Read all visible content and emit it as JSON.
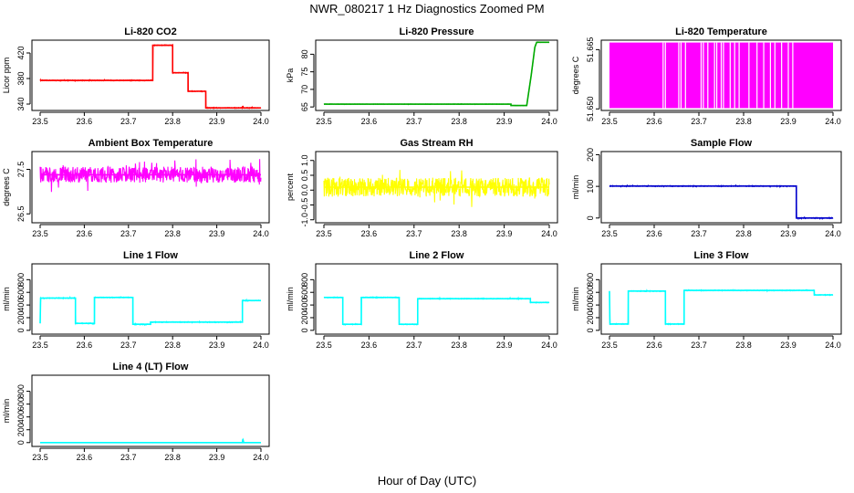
{
  "figure_title": "NWR_080217  1 Hz Diagnostics Zoomed PM",
  "x_axis_label": "Hour of Day (UTC)",
  "chart_data": [
    {
      "id": "co2",
      "type": "line",
      "title": "Li-820 CO2",
      "ylabel": "Licor ppm",
      "color": "#ff0000",
      "xlim": [
        23.5,
        24.0
      ],
      "ylim": [
        330,
        440
      ],
      "x_ticks": [
        "23.5",
        "23.6",
        "23.7",
        "23.8",
        "23.9",
        "24.0"
      ],
      "y_ticks": [
        "340",
        "380",
        "420"
      ],
      "y_tick_values": [
        340,
        380,
        420
      ],
      "noise": 0.6,
      "series": [
        {
          "points": [
            [
              23.5,
              377
            ],
            [
              23.755,
              377
            ],
            [
              23.755,
              432
            ],
            [
              23.8,
              432
            ],
            [
              23.8,
              389
            ],
            [
              23.835,
              389
            ],
            [
              23.835,
              360
            ],
            [
              23.875,
              360
            ],
            [
              23.875,
              334
            ],
            [
              23.958,
              334
            ],
            [
              23.959,
              337
            ],
            [
              23.96,
              334
            ],
            [
              24.0,
              334
            ]
          ]
        }
      ]
    },
    {
      "id": "pressure",
      "type": "line",
      "title": "Li-820 Pressure",
      "ylabel": "kPa",
      "color": "#00aa00",
      "xlim": [
        23.5,
        24.0
      ],
      "ylim": [
        64,
        84
      ],
      "x_ticks": [
        "23.5",
        "23.6",
        "23.7",
        "23.8",
        "23.9",
        "24.0"
      ],
      "y_ticks": [
        "65",
        "70",
        "75",
        "80"
      ],
      "y_tick_values": [
        65,
        70,
        75,
        80
      ],
      "noise": 0.05,
      "series": [
        {
          "points": [
            [
              23.5,
              65.8
            ],
            [
              23.915,
              65.8
            ],
            [
              23.915,
              65.4
            ],
            [
              23.95,
              65.4
            ],
            [
              23.96,
              74
            ],
            [
              23.968,
              82
            ],
            [
              23.972,
              83.4
            ],
            [
              24.0,
              83.4
            ]
          ]
        }
      ]
    },
    {
      "id": "temp",
      "type": "band",
      "title": "Li-820 Temperature",
      "ylabel": "degrees C",
      "color": "#ff00ff",
      "xlim": [
        23.5,
        24.0
      ],
      "ylim": [
        51.6496,
        51.6674
      ],
      "x_ticks": [
        "23.5",
        "23.6",
        "23.7",
        "23.8",
        "23.9",
        "24.0"
      ],
      "y_ticks": [
        "51.650",
        "51.665"
      ],
      "y_tick_values": [
        51.65,
        51.665
      ],
      "band": [
        51.6502,
        51.6668
      ],
      "gaps": [
        23.62,
        23.625,
        23.655,
        23.66,
        23.67,
        23.705,
        23.71,
        23.72,
        23.735,
        23.74,
        23.75,
        23.755,
        23.77,
        23.78,
        23.79,
        23.812,
        23.83,
        23.845,
        23.86,
        23.87,
        23.885,
        23.9,
        23.91
      ]
    },
    {
      "id": "ambient",
      "type": "line",
      "title": "Ambient Box Temperature",
      "ylabel": "degrees C",
      "color": "#ff00ff",
      "xlim": [
        23.5,
        24.0
      ],
      "ylim": [
        26.3,
        27.9
      ],
      "x_ticks": [
        "23.5",
        "23.6",
        "23.7",
        "23.8",
        "23.9",
        "24.0"
      ],
      "y_ticks": [
        "26.5",
        "27.5"
      ],
      "y_tick_values": [
        26.5,
        27.5
      ],
      "noise": 0.18,
      "series": [
        {
          "points": [
            [
              23.5,
              27.38
            ],
            [
              24.0,
              27.38
            ]
          ]
        }
      ]
    },
    {
      "id": "rh",
      "type": "line",
      "title": "Gas Stream RH",
      "ylabel": "percent",
      "color": "#ffff00",
      "xlim": [
        23.5,
        24.0
      ],
      "ylim": [
        -1.1,
        1.3
      ],
      "x_ticks": [
        "23.5",
        "23.6",
        "23.7",
        "23.8",
        "23.9",
        "24.0"
      ],
      "y_ticks": [
        "-1.0",
        "-0.5",
        "0.0",
        "0.5",
        "1.0"
      ],
      "y_tick_values": [
        -1.0,
        -0.5,
        0.0,
        0.5,
        1.0
      ],
      "noise": 0.32,
      "series": [
        {
          "points": [
            [
              23.5,
              0.1
            ],
            [
              24.0,
              0.1
            ]
          ]
        }
      ]
    },
    {
      "id": "sample",
      "type": "line",
      "title": "Sample Flow",
      "ylabel": "ml/min",
      "color": "#0000cc",
      "xlim": [
        23.5,
        24.0
      ],
      "ylim": [
        -15,
        210
      ],
      "x_ticks": [
        "23.5",
        "23.6",
        "23.7",
        "23.8",
        "23.9",
        "24.0"
      ],
      "y_ticks": [
        "0",
        "100",
        "200"
      ],
      "y_tick_values": [
        0,
        100,
        200
      ],
      "noise": 1.2,
      "series": [
        {
          "points": [
            [
              23.5,
              101
            ],
            [
              23.918,
              101
            ],
            [
              23.918,
              0
            ],
            [
              24.0,
              0
            ]
          ]
        }
      ]
    },
    {
      "id": "line1",
      "type": "line",
      "title": "Line 1 Flow",
      "ylabel": "ml/min",
      "color": "#00ffff",
      "xlim": [
        23.5,
        24.0
      ],
      "ylim": [
        -60,
        1050
      ],
      "x_ticks": [
        "23.5",
        "23.6",
        "23.7",
        "23.8",
        "23.9",
        "24.0"
      ],
      "y_ticks": [
        "0",
        "200",
        "400",
        "600",
        "800"
      ],
      "y_tick_values": [
        0,
        200,
        400,
        600,
        800
      ],
      "noise": 6,
      "series": [
        {
          "points": [
            [
              23.5,
              110
            ],
            [
              23.501,
              510
            ],
            [
              23.58,
              510
            ],
            [
              23.58,
              110
            ],
            [
              23.623,
              110
            ],
            [
              23.623,
              520
            ],
            [
              23.71,
              520
            ],
            [
              23.71,
              95
            ],
            [
              23.75,
              95
            ],
            [
              23.75,
              130
            ],
            [
              23.958,
              130
            ],
            [
              23.958,
              470
            ],
            [
              24.0,
              470
            ]
          ]
        }
      ]
    },
    {
      "id": "line2",
      "type": "line",
      "title": "Line 2 Flow",
      "ylabel": "ml/min",
      "color": "#00ffff",
      "xlim": [
        23.5,
        24.0
      ],
      "ylim": [
        -60,
        1050
      ],
      "x_ticks": [
        "23.5",
        "23.6",
        "23.7",
        "23.8",
        "23.9",
        "24.0"
      ],
      "y_ticks": [
        "0",
        "200",
        "400",
        "600",
        "800"
      ],
      "y_tick_values": [
        0,
        200,
        400,
        600,
        800
      ],
      "noise": 6,
      "series": [
        {
          "points": [
            [
              23.5,
              520
            ],
            [
              23.542,
              520
            ],
            [
              23.542,
              95
            ],
            [
              23.583,
              95
            ],
            [
              23.583,
              520
            ],
            [
              23.667,
              520
            ],
            [
              23.667,
              95
            ],
            [
              23.708,
              95
            ],
            [
              23.708,
              500
            ],
            [
              23.958,
              500
            ],
            [
              23.958,
              440
            ],
            [
              24.0,
              440
            ]
          ]
        }
      ]
    },
    {
      "id": "line3",
      "type": "line",
      "title": "Line 3 Flow",
      "ylabel": "ml/min",
      "color": "#00ffff",
      "xlim": [
        23.5,
        24.0
      ],
      "ylim": [
        -60,
        1050
      ],
      "x_ticks": [
        "23.5",
        "23.6",
        "23.7",
        "23.8",
        "23.9",
        "24.0"
      ],
      "y_ticks": [
        "0",
        "200",
        "400",
        "600",
        "800"
      ],
      "y_tick_values": [
        0,
        200,
        400,
        600,
        800
      ],
      "noise": 6,
      "series": [
        {
          "points": [
            [
              23.5,
              620
            ],
            [
              23.501,
              100
            ],
            [
              23.542,
              100
            ],
            [
              23.542,
              620
            ],
            [
              23.625,
              620
            ],
            [
              23.625,
              100
            ],
            [
              23.667,
              100
            ],
            [
              23.667,
              630
            ],
            [
              23.958,
              630
            ],
            [
              23.958,
              560
            ],
            [
              24.0,
              560
            ]
          ]
        }
      ]
    },
    {
      "id": "line4",
      "type": "line",
      "title": "Line 4 (LT) Flow",
      "ylabel": "ml/min",
      "color": "#00ffff",
      "xlim": [
        23.5,
        24.0
      ],
      "ylim": [
        -60,
        1050
      ],
      "x_ticks": [
        "23.5",
        "23.6",
        "23.7",
        "23.8",
        "23.9",
        "24.0"
      ],
      "y_ticks": [
        "0",
        "200",
        "400",
        "600",
        "800"
      ],
      "y_tick_values": [
        0,
        200,
        400,
        600,
        800
      ],
      "noise": 1.5,
      "series": [
        {
          "points": [
            [
              23.5,
              0
            ],
            [
              23.958,
              0
            ],
            [
              23.959,
              55
            ],
            [
              23.961,
              0
            ],
            [
              24.0,
              0
            ]
          ]
        }
      ]
    }
  ]
}
